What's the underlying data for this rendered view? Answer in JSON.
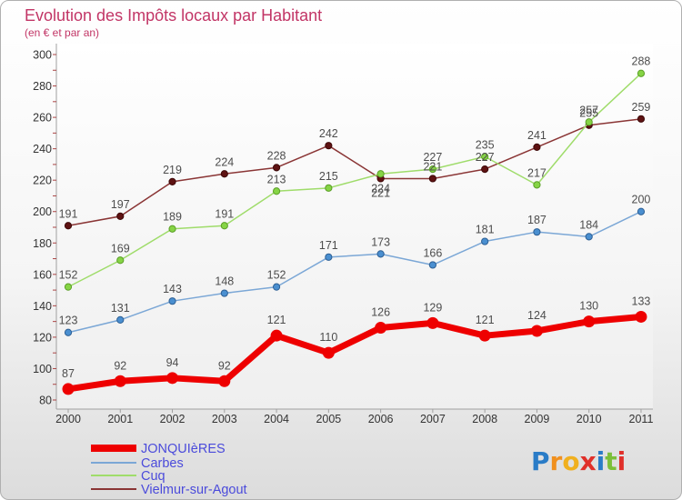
{
  "chart_data": {
    "type": "line",
    "title": "Evolution des Impôts locaux par Habitant",
    "subtitle": "(en € et par an)",
    "xlabel": "",
    "ylabel": "",
    "categories": [
      "2000",
      "2001",
      "2002",
      "2003",
      "2004",
      "2005",
      "2006",
      "2007",
      "2008",
      "2009",
      "2010",
      "2011"
    ],
    "ylim": [
      80,
      300
    ],
    "yticks": [
      80,
      100,
      120,
      140,
      160,
      180,
      200,
      220,
      240,
      260,
      280,
      300
    ],
    "grid": false,
    "legend_position": "bottom-left",
    "series": [
      {
        "name": "JONQUIèRES",
        "color": "#ee0000",
        "marker_color": "#ee0000",
        "marker_stroke": "#cc0000",
        "values": [
          87,
          92,
          94,
          92,
          121,
          110,
          126,
          129,
          121,
          124,
          130,
          133
        ]
      },
      {
        "name": "Carbes",
        "color": "#7ba7d6",
        "marker_color": "#4a8fd0",
        "marker_stroke": "#2d5f94",
        "values": [
          123,
          131,
          143,
          148,
          152,
          171,
          173,
          166,
          181,
          187,
          184,
          200
        ]
      },
      {
        "name": "Cuq",
        "color": "#9fdc6a",
        "marker_color": "#86d445",
        "marker_stroke": "#5a9e26",
        "values": [
          152,
          169,
          189,
          191,
          213,
          215,
          224,
          227,
          235,
          217,
          257,
          288
        ]
      },
      {
        "name": "Vielmur-sur-Agout",
        "color": "#8a3535",
        "marker_color": "#5e1212",
        "marker_stroke": "#3d0808",
        "values": [
          191,
          197,
          219,
          224,
          228,
          242,
          221,
          221,
          227,
          241,
          255,
          259
        ]
      }
    ]
  },
  "colors": {
    "title": "#c23566",
    "legend_text": "#4b4bdb",
    "axis": "#a0a0a0",
    "minor_tick": "#aa4444",
    "tick_label": "#333333",
    "data_label": "#4d4d4d"
  },
  "logo": {
    "text": "Proxiti",
    "letter_colors": [
      "#2a7cc7",
      "#f0901e",
      "#f0b01e",
      "#e0302a",
      "#2a7cc7",
      "#7cbf3a",
      "#e0302a"
    ]
  }
}
